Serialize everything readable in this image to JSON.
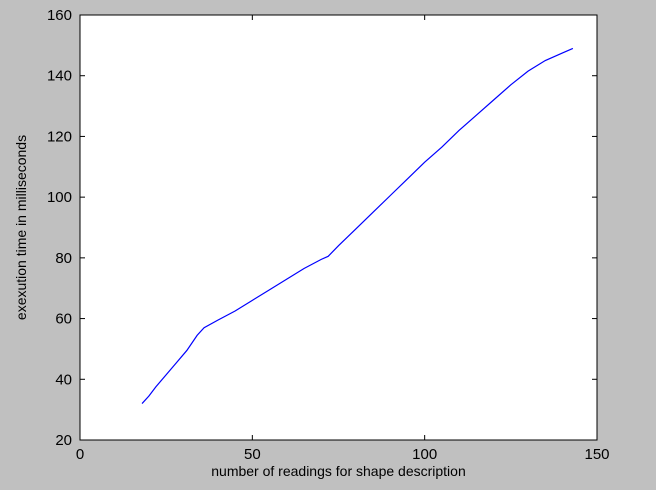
{
  "chart_data": {
    "type": "line",
    "title": "",
    "xlabel": "number of readings for shape description",
    "ylabel": "exexution time in milliseconds",
    "xlim": [
      0,
      150
    ],
    "ylim": [
      20,
      160
    ],
    "xticks": [
      0,
      50,
      100,
      150
    ],
    "yticks": [
      20,
      40,
      60,
      80,
      100,
      120,
      140,
      160
    ],
    "grid": false,
    "series": [
      {
        "color": "#0000ff",
        "x": [
          18,
          20,
          22,
          25,
          28,
          31,
          34,
          36,
          40,
          45,
          50,
          55,
          60,
          65,
          70,
          72,
          75,
          80,
          85,
          90,
          95,
          100,
          105,
          110,
          115,
          120,
          125,
          130,
          135,
          140,
          143
        ],
        "y": [
          32,
          34.5,
          37.5,
          41.5,
          45.5,
          49.5,
          54.5,
          57,
          59.5,
          62.5,
          66,
          69.5,
          73,
          76.5,
          79.5,
          80.5,
          84,
          89.5,
          95,
          100.5,
          106,
          111.5,
          116.5,
          122,
          127,
          132,
          137,
          141.5,
          145,
          147.5,
          149
        ]
      }
    ]
  },
  "colors": {
    "figure_background": "#c0c0c0",
    "axes_background": "#ffffff",
    "line": "#0000ff"
  }
}
